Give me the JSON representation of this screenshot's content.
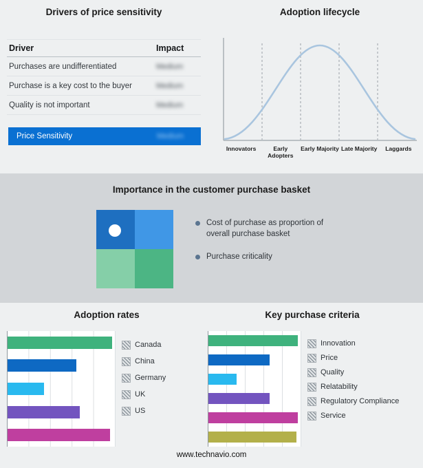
{
  "page": {
    "footer": "www.technavio.com"
  },
  "drivers": {
    "title": "Drivers of price sensitivity",
    "col_driver": "Driver",
    "col_impact": "Impact",
    "rows": [
      {
        "driver": "Purchases are undifferentiated",
        "impact": "Medium"
      },
      {
        "driver": "Purchase is a key cost to the buyer",
        "impact": "Medium"
      },
      {
        "driver": "Quality is not important",
        "impact": "Medium"
      }
    ],
    "highlight": {
      "driver": "Price Sensitivity",
      "impact": "Medium",
      "color": "#0a70d2"
    }
  },
  "basket": {
    "title": "Importance in the customer purchase basket",
    "bullets": [
      "Cost of purchase as proportion of overall purchase basket",
      "Purchase criticality"
    ],
    "quad_colors": [
      "#1e6fc0",
      "#4097e6",
      "#85cfa8",
      "#4cb584"
    ]
  },
  "chart_data": [
    {
      "type": "line",
      "subtype": "bell-curve",
      "title": "Adoption lifecycle",
      "categories": [
        "Innovators",
        "Early Adopters",
        "Early Majority",
        "Late Majority",
        "Laggards"
      ],
      "curve_color": "#a9c5df",
      "grid": "dashed-vertical-separators",
      "legend_position": "none"
    },
    {
      "type": "bar",
      "orientation": "horizontal",
      "title": "Adoption rates",
      "categories": [
        "Canada",
        "China",
        "Germany",
        "UK",
        "US"
      ],
      "values": [
        97,
        64,
        34,
        67,
        95
      ],
      "colors": [
        "#3fb27d",
        "#0e69c3",
        "#29b9ef",
        "#7354bf",
        "#bf3f9f"
      ],
      "xlim": [
        0,
        100
      ],
      "grid": true,
      "legend_position": "right"
    },
    {
      "type": "bar",
      "orientation": "horizontal",
      "title": "Key purchase criteria",
      "categories": [
        "Innovation",
        "Price",
        "Quality",
        "Relatability",
        "Regulatory Compliance",
        "Service"
      ],
      "values": [
        96,
        66,
        30,
        66,
        96,
        95
      ],
      "colors": [
        "#3fb27d",
        "#0e69c3",
        "#29b9ef",
        "#7354bf",
        "#bf3f9f",
        "#b3b04a"
      ],
      "xlim": [
        0,
        100
      ],
      "grid": true,
      "legend_position": "right"
    }
  ]
}
